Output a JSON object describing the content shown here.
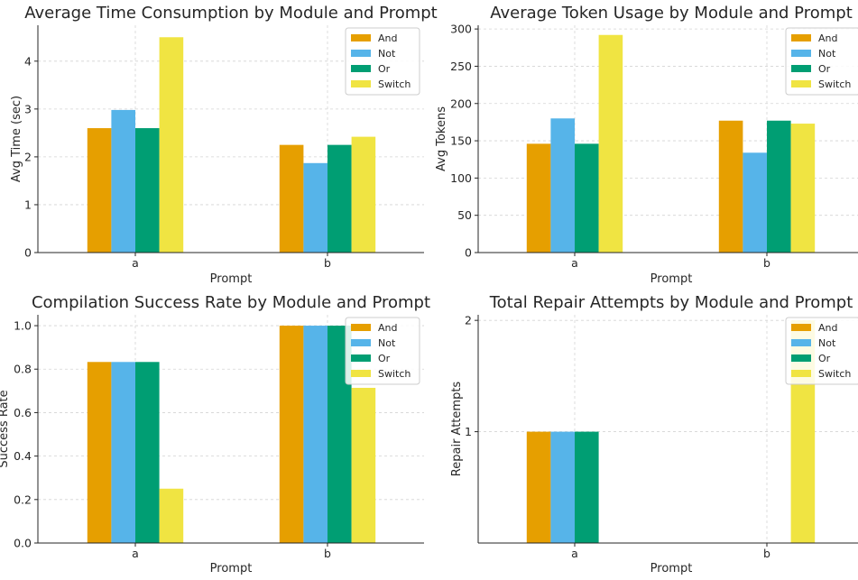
{
  "colors": {
    "And": "#E69F00",
    "Not": "#56B4E9",
    "Or": "#009E73",
    "Switch": "#F0E442"
  },
  "chart_data": [
    {
      "type": "bar",
      "title": "Average Time Consumption by Module and Prompt",
      "xlabel": "Prompt",
      "ylabel": "Avg Time (sec)",
      "categories": [
        "a",
        "b"
      ],
      "ylim": [
        0,
        4.75
      ],
      "yticks": [
        0,
        1,
        2,
        3,
        4
      ],
      "grid": true,
      "legend_position": "top-right",
      "series": [
        {
          "name": "And",
          "values": [
            2.6,
            2.25
          ]
        },
        {
          "name": "Not",
          "values": [
            2.98,
            1.87
          ]
        },
        {
          "name": "Or",
          "values": [
            2.6,
            2.25
          ]
        },
        {
          "name": "Switch",
          "values": [
            4.5,
            2.42
          ]
        }
      ]
    },
    {
      "type": "bar",
      "title": "Average Token Usage by Module and Prompt",
      "xlabel": "Prompt",
      "ylabel": "Avg Tokens",
      "categories": [
        "a",
        "b"
      ],
      "ylim": [
        0,
        305
      ],
      "yticks": [
        0,
        50,
        100,
        150,
        200,
        250,
        300
      ],
      "grid": true,
      "legend_position": "top-right",
      "series": [
        {
          "name": "And",
          "values": [
            146,
            177
          ]
        },
        {
          "name": "Not",
          "values": [
            180,
            134
          ]
        },
        {
          "name": "Or",
          "values": [
            146,
            177
          ]
        },
        {
          "name": "Switch",
          "values": [
            292,
            173
          ]
        }
      ]
    },
    {
      "type": "bar",
      "title": "Compilation Success Rate by Module and Prompt",
      "xlabel": "Prompt",
      "ylabel": "Success Rate",
      "categories": [
        "a",
        "b"
      ],
      "ylim": [
        0,
        1.05
      ],
      "yticks": [
        0.0,
        0.2,
        0.4,
        0.6,
        0.8,
        1.0
      ],
      "ytick_labels": [
        "0.0",
        "0.2",
        "0.4",
        "0.6",
        "0.8",
        "1.0"
      ],
      "grid": true,
      "legend_position": "top-right",
      "series": [
        {
          "name": "And",
          "values": [
            0.833,
            1.0
          ]
        },
        {
          "name": "Not",
          "values": [
            0.833,
            1.0
          ]
        },
        {
          "name": "Or",
          "values": [
            0.833,
            1.0
          ]
        },
        {
          "name": "Switch",
          "values": [
            0.25,
            0.714
          ]
        }
      ]
    },
    {
      "type": "bar",
      "title": "Total Repair Attempts by Module and Prompt",
      "xlabel": "Prompt",
      "ylabel": "Repair Attempts",
      "categories": [
        "a",
        "b"
      ],
      "ylim": [
        0,
        2.05
      ],
      "yticks": [
        1,
        2
      ],
      "grid": true,
      "legend_position": "top-right",
      "series": [
        {
          "name": "And",
          "values": [
            1,
            0
          ]
        },
        {
          "name": "Not",
          "values": [
            1,
            0
          ]
        },
        {
          "name": "Or",
          "values": [
            1,
            0
          ]
        },
        {
          "name": "Switch",
          "values": [
            0,
            2
          ]
        }
      ]
    }
  ]
}
